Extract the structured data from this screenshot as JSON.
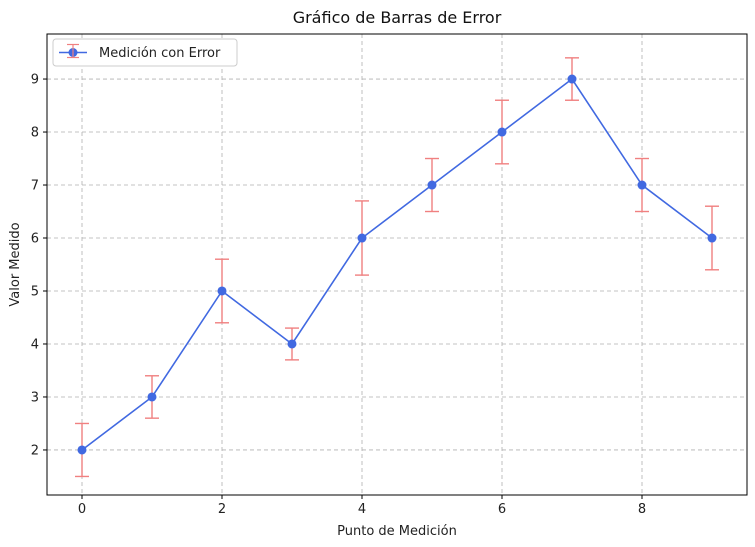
{
  "chart_data": {
    "type": "line",
    "title": "Gráfico de Barras de Error",
    "xlabel": "Punto de Medición",
    "ylabel": "Valor Medido",
    "x": [
      0,
      1,
      2,
      3,
      4,
      5,
      6,
      7,
      8,
      9
    ],
    "series": [
      {
        "name": "Medición con Error",
        "values": [
          2,
          3,
          5,
          4,
          6,
          7,
          8,
          9,
          7,
          6
        ],
        "err_upper": [
          2.5,
          3.4,
          5.6,
          4.3,
          6.7,
          7.5,
          8.6,
          9.4,
          7.5,
          6.6
        ],
        "err_lower": [
          1.5,
          2.6,
          4.4,
          3.7,
          5.3,
          6.5,
          7.4,
          8.6,
          6.5,
          5.4
        ],
        "line_color": "#4169e1",
        "error_color": "#f08080"
      }
    ],
    "xticks": [
      "0",
      "2",
      "4",
      "6",
      "8"
    ],
    "yticks": [
      "2",
      "3",
      "4",
      "5",
      "6",
      "7",
      "8",
      "9"
    ],
    "xlim": [
      -0.5,
      9.5
    ],
    "ylim": [
      1.15,
      9.85
    ],
    "grid": true,
    "legend_position": "top-left"
  }
}
